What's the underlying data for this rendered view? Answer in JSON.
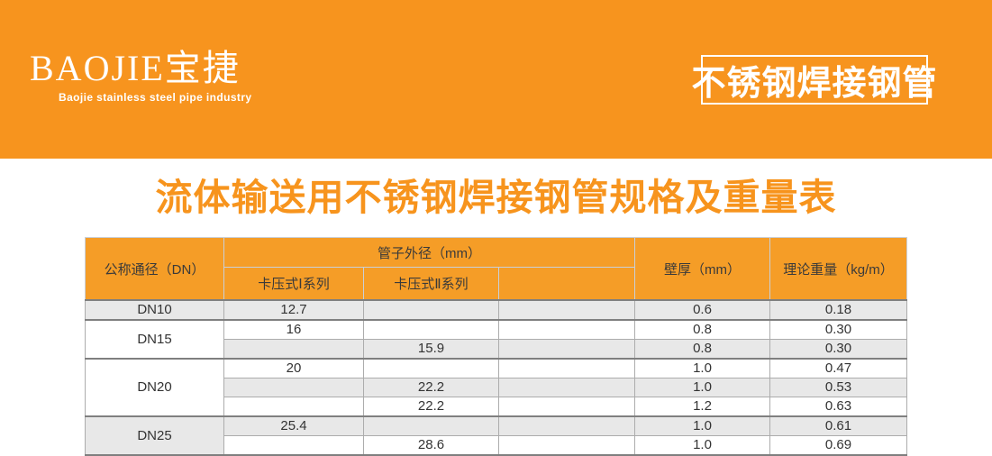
{
  "banner": {
    "logo_text": "BAOJIE宝捷",
    "tagline": "Baojie stainless steel pipe industry",
    "badge_text": "不锈钢焊接钢管"
  },
  "page_title": "流体输送用不锈钢焊接钢管规格及重量表",
  "table": {
    "headers": {
      "col_dn": "公称通径（DN）",
      "group_od": "管子外径（mm）",
      "col_series1": "卡压式Ⅰ系列",
      "col_series2": "卡压式Ⅱ系列",
      "col_series3": "",
      "col_wall": "壁厚（mm）",
      "col_weight": "理论重量（kg/m）"
    },
    "groups": [
      {
        "dn": "DN10",
        "dn_shade": true,
        "rows": [
          {
            "series1": "12.7",
            "series2": "",
            "series3": "",
            "wall": "0.6",
            "weight": "0.18",
            "shade": true
          }
        ]
      },
      {
        "dn": "DN15",
        "dn_shade": false,
        "rows": [
          {
            "series1": "16",
            "series2": "",
            "series3": "",
            "wall": "0.8",
            "weight": "0.30",
            "shade": false
          },
          {
            "series1": "",
            "series2": "15.9",
            "series3": "",
            "wall": "0.8",
            "weight": "0.30",
            "shade": true
          }
        ]
      },
      {
        "dn": "DN20",
        "dn_shade": false,
        "rows": [
          {
            "series1": "20",
            "series2": "",
            "series3": "",
            "wall": "1.0",
            "weight": "0.47",
            "shade": false
          },
          {
            "series1": "",
            "series2": "22.2",
            "series3": "",
            "wall": "1.0",
            "weight": "0.53",
            "shade": true
          },
          {
            "series1": "",
            "series2": "22.2",
            "series3": "",
            "wall": "1.2",
            "weight": "0.63",
            "shade": false
          }
        ]
      },
      {
        "dn": "DN25",
        "dn_shade": true,
        "rows": [
          {
            "series1": "25.4",
            "series2": "",
            "series3": "",
            "wall": "1.0",
            "weight": "0.61",
            "shade": true
          },
          {
            "series1": "",
            "series2": "28.6",
            "series3": "",
            "wall": "1.0",
            "weight": "0.69",
            "shade": false
          }
        ]
      }
    ],
    "partial_bottom_row": {
      "shade": true
    }
  },
  "colors": {
    "banner_orange": "#F7941E",
    "table_header_orange": "#F59D27",
    "title_orange": "#F7941D",
    "shade_gray": "#E8E8E8",
    "border_dark": "#7F7F7F",
    "border_light": "#ACACAC",
    "header_border": "#C9CFD8",
    "text_dark": "#333333"
  }
}
